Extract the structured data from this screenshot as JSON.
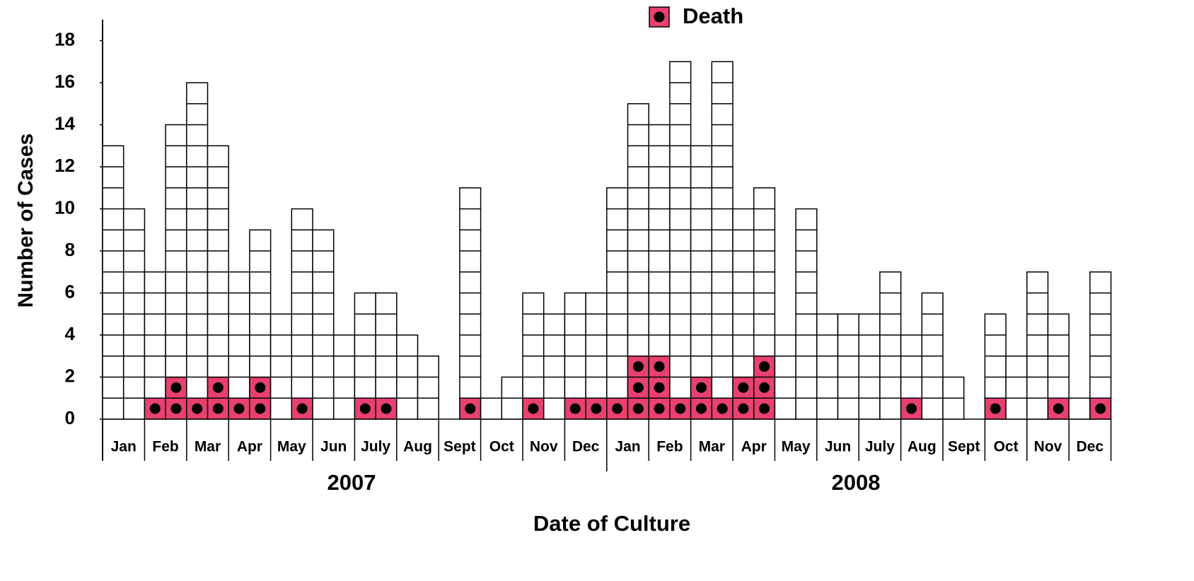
{
  "chart_data": {
    "type": "stacked-squares",
    "y_label": "Number of Cases",
    "x_label": "Date of Culture",
    "year_labels": [
      "2007",
      "2008"
    ],
    "categories": [
      "Jan",
      null,
      "Feb",
      null,
      "Mar",
      null,
      "Apr",
      null,
      "May",
      null,
      "Jun",
      null,
      "July",
      null,
      "Aug",
      null,
      "Sept",
      null,
      "Oct",
      null,
      "Nov",
      null,
      "Dec",
      null,
      "Jan",
      null,
      "Feb",
      null,
      "Mar",
      null,
      "Apr",
      null,
      "May",
      null,
      "Jun",
      null,
      "July",
      null,
      "Aug",
      null,
      "Sept",
      null,
      "Oct",
      null,
      "Nov",
      null,
      "Dec",
      null
    ],
    "series": [
      {
        "name": "Death",
        "color": "#e8416f",
        "values": [
          0,
          0,
          1,
          2,
          1,
          2,
          1,
          2,
          0,
          1,
          0,
          0,
          1,
          1,
          0,
          0,
          0,
          1,
          0,
          0,
          1,
          0,
          1,
          1,
          1,
          3,
          3,
          1,
          2,
          1,
          2,
          3,
          0,
          0,
          0,
          0,
          0,
          0,
          1,
          0,
          0,
          0,
          1,
          0,
          0,
          1,
          0,
          1
        ]
      },
      {
        "color": "#ffffff",
        "values": [
          13,
          10,
          6,
          12,
          15,
          11,
          6,
          7,
          5,
          9,
          9,
          4,
          5,
          5,
          4,
          3,
          0,
          10,
          1,
          2,
          5,
          5,
          5,
          5,
          10,
          12,
          11,
          16,
          11,
          16,
          8,
          8,
          4,
          10,
          5,
          5,
          5,
          7,
          3,
          6,
          2,
          0,
          4,
          3,
          7,
          4,
          1,
          6
        ]
      }
    ],
    "ylim": [
      0,
      19
    ],
    "yticks": [
      0,
      2,
      4,
      6,
      8,
      10,
      12,
      14,
      16,
      18
    ],
    "grid": false
  }
}
